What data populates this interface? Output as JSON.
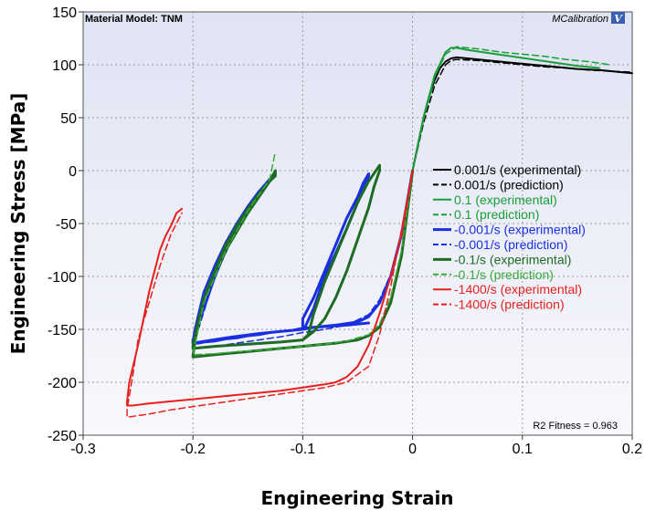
{
  "chart_data": {
    "type": "line",
    "header_left": "Material Model: TNM",
    "header_right": "MCalibration",
    "logo_glyph": "V",
    "fitness_label": "R2 Fitness = 0.963",
    "xlabel": "Engineering Strain",
    "ylabel": "Engineering Stress [MPa]",
    "xlim": [
      -0.3,
      0.2
    ],
    "ylim": [
      -250,
      150
    ],
    "xticks": [
      -0.3,
      -0.2,
      -0.1,
      0,
      0.1,
      0.2
    ],
    "xtick_labels": [
      "-0.3",
      "-0.2",
      "-0.1",
      "0",
      "0.1",
      "0.2"
    ],
    "yticks": [
      -250,
      -200,
      -150,
      -100,
      -50,
      0,
      50,
      100,
      150
    ],
    "ytick_labels": [
      "-250",
      "-200",
      "-150",
      "-100",
      "-50",
      "0",
      "50",
      "100",
      "150"
    ],
    "grid": true,
    "legend_position": "right",
    "series": [
      {
        "name": "0.001/s (experimental)",
        "color": "#000000",
        "style": "solid",
        "width": 2,
        "x": [
          0,
          0.005,
          0.01,
          0.015,
          0.02,
          0.025,
          0.03,
          0.035,
          0.04,
          0.05,
          0.07,
          0.09,
          0.11,
          0.13,
          0.15,
          0.17,
          0.19,
          0.2
        ],
        "y": [
          0,
          25,
          50,
          70,
          85,
          97,
          103,
          106,
          107,
          106,
          104,
          102,
          100,
          98,
          96,
          95,
          93,
          92
        ]
      },
      {
        "name": "0.001/s (prediction)",
        "color": "#000000",
        "style": "dashed",
        "width": 1.5,
        "x": [
          0,
          0.01,
          0.02,
          0.03,
          0.035,
          0.04,
          0.06,
          0.08,
          0.1,
          0.12,
          0.14,
          0.16,
          0.18,
          0.2
        ],
        "y": [
          0,
          45,
          80,
          100,
          104,
          105,
          104,
          102,
          100,
          98,
          97,
          95,
          94,
          93
        ]
      },
      {
        "name": "0.1 (experimental)",
        "color": "#1a9e3a",
        "style": "solid",
        "width": 2,
        "x": [
          0,
          0.01,
          0.02,
          0.03,
          0.035,
          0.04,
          0.05,
          0.07,
          0.09,
          0.11,
          0.13,
          0.15,
          0.17
        ],
        "y": [
          0,
          50,
          90,
          112,
          116,
          116,
          114,
          111,
          108,
          105,
          102,
          99,
          97
        ]
      },
      {
        "name": "0.1 (prediction)",
        "color": "#1a9e3a",
        "style": "dashed",
        "width": 1.5,
        "x": [
          0,
          0.01,
          0.02,
          0.03,
          0.04,
          0.06,
          0.08,
          0.1,
          0.12,
          0.14,
          0.16,
          0.18
        ],
        "y": [
          0,
          48,
          88,
          110,
          117,
          115,
          112,
          110,
          108,
          105,
          103,
          100
        ]
      },
      {
        "name": "-0.001/s (experimental)",
        "color": "#1a2fe0",
        "style": "solid",
        "width": 3,
        "x": [
          0,
          -0.005,
          -0.01,
          -0.02,
          -0.03,
          -0.04,
          -0.05,
          -0.07,
          -0.09,
          -0.1,
          -0.11,
          -0.12,
          -0.13,
          -0.14,
          -0.15,
          -0.16,
          -0.17,
          -0.18,
          -0.19,
          -0.195,
          -0.2,
          -0.2,
          -0.198,
          -0.19,
          -0.18,
          -0.17,
          -0.16,
          -0.15,
          -0.14,
          -0.13,
          -0.125,
          -0.13,
          -0.14,
          -0.15,
          -0.16,
          -0.17,
          -0.18,
          -0.19,
          -0.2,
          -0.2,
          -0.17,
          -0.14,
          -0.12,
          -0.1,
          -0.098,
          -0.09,
          -0.08,
          -0.07,
          -0.06,
          -0.05,
          -0.04,
          -0.04,
          -0.045,
          -0.05,
          -0.06,
          -0.07,
          -0.08,
          -0.09,
          -0.1,
          -0.1,
          -0.09,
          -0.06,
          -0.04
        ],
        "y": [
          0,
          -30,
          -60,
          -100,
          -125,
          -138,
          -143,
          -146,
          -148,
          -149,
          -151,
          -152,
          -153,
          -155,
          -156,
          -158,
          -159,
          -161,
          -162,
          -163,
          -163,
          -162,
          -150,
          -115,
          -90,
          -68,
          -50,
          -34,
          -20,
          -8,
          -3,
          -8,
          -22,
          -38,
          -55,
          -75,
          -100,
          -130,
          -160,
          -163,
          -158,
          -154,
          -152,
          -150,
          -148,
          -130,
          -100,
          -78,
          -55,
          -30,
          -5,
          -3,
          -12,
          -25,
          -45,
          -70,
          -95,
          -120,
          -140,
          -150,
          -148,
          -146,
          -144
        ]
      },
      {
        "name": "-0.001/s (prediction)",
        "color": "#1a2fe0",
        "style": "dashed",
        "width": 1.5,
        "x": [
          0,
          -0.01,
          -0.02,
          -0.03,
          -0.04,
          -0.06,
          -0.08,
          -0.1,
          -0.12,
          -0.14,
          -0.16,
          -0.18,
          -0.2,
          -0.195,
          -0.18,
          -0.16,
          -0.14,
          -0.13
        ],
        "y": [
          0,
          -58,
          -98,
          -122,
          -136,
          -146,
          -150,
          -153,
          -157,
          -160,
          -163,
          -166,
          -168,
          -150,
          -100,
          -55,
          -22,
          -8
        ]
      },
      {
        "name": "-0.1/s (experimental)",
        "color": "#1e6b24",
        "style": "solid",
        "width": 3,
        "x": [
          0,
          -0.005,
          -0.01,
          -0.02,
          -0.03,
          -0.04,
          -0.05,
          -0.07,
          -0.09,
          -0.1,
          -0.12,
          -0.14,
          -0.16,
          -0.18,
          -0.2,
          -0.2,
          -0.198,
          -0.19,
          -0.18,
          -0.17,
          -0.16,
          -0.15,
          -0.14,
          -0.13,
          -0.125,
          -0.125,
          -0.13,
          -0.15,
          -0.17,
          -0.19,
          -0.2,
          -0.2,
          -0.18,
          -0.15,
          -0.12,
          -0.1,
          -0.095,
          -0.09,
          -0.08,
          -0.07,
          -0.06,
          -0.05,
          -0.04,
          -0.03,
          -0.03,
          -0.035,
          -0.04,
          -0.05,
          -0.06,
          -0.07,
          -0.08,
          -0.09,
          -0.1
        ],
        "y": [
          0,
          -40,
          -80,
          -125,
          -148,
          -156,
          -160,
          -163,
          -165,
          -166,
          -168,
          -170,
          -172,
          -174,
          -176,
          -175,
          -160,
          -120,
          -95,
          -70,
          -52,
          -36,
          -22,
          -10,
          -5,
          0,
          -10,
          -40,
          -75,
          -120,
          -165,
          -168,
          -166,
          -164,
          -162,
          -160,
          -155,
          -135,
          -105,
          -80,
          -55,
          -30,
          -10,
          5,
          0,
          -15,
          -35,
          -65,
          -95,
          -120,
          -140,
          -152,
          -160
        ]
      },
      {
        "name": "-0.1/s (prediction)",
        "color": "#3aaa3a",
        "style": "dashed",
        "width": 1.5,
        "x": [
          0,
          -0.01,
          -0.02,
          -0.03,
          -0.04,
          -0.06,
          -0.08,
          -0.1,
          -0.12,
          -0.14,
          -0.16,
          -0.18,
          -0.2,
          -0.19,
          -0.17,
          -0.15,
          -0.13,
          -0.125
        ],
        "y": [
          0,
          -75,
          -120,
          -145,
          -155,
          -161,
          -164,
          -166,
          -168,
          -170,
          -171,
          -173,
          -174,
          -125,
          -75,
          -38,
          -8,
          18
        ]
      },
      {
        "name": "-1400/s (experimental)",
        "color": "#e8201c",
        "style": "solid",
        "width": 2,
        "x": [
          0,
          -0.005,
          -0.01,
          -0.02,
          -0.03,
          -0.04,
          -0.05,
          -0.06,
          -0.07,
          -0.08,
          -0.1,
          -0.12,
          -0.14,
          -0.16,
          -0.18,
          -0.2,
          -0.22,
          -0.24,
          -0.255,
          -0.26,
          -0.26,
          -0.258,
          -0.25,
          -0.245,
          -0.24,
          -0.235,
          -0.23,
          -0.225,
          -0.22,
          -0.215,
          -0.21
        ],
        "y": [
          0,
          -30,
          -60,
          -100,
          -135,
          -165,
          -185,
          -195,
          -200,
          -202,
          -205,
          -208,
          -210,
          -212,
          -214,
          -216,
          -218,
          -220,
          -222,
          -222,
          -218,
          -200,
          -165,
          -140,
          -115,
          -95,
          -75,
          -62,
          -52,
          -40,
          -36
        ]
      },
      {
        "name": "-1400/s (prediction)",
        "color": "#e8201c",
        "style": "dashed",
        "width": 1.5,
        "x": [
          0,
          -0.01,
          -0.02,
          -0.03,
          -0.04,
          -0.06,
          -0.08,
          -0.1,
          -0.12,
          -0.14,
          -0.16,
          -0.18,
          -0.2,
          -0.22,
          -0.24,
          -0.26,
          -0.26,
          -0.255,
          -0.25,
          -0.24,
          -0.23,
          -0.22,
          -0.21
        ],
        "y": [
          0,
          -55,
          -110,
          -155,
          -185,
          -200,
          -205,
          -208,
          -211,
          -214,
          -217,
          -220,
          -223,
          -226,
          -230,
          -233,
          -225,
          -195,
          -160,
          -125,
          -90,
          -60,
          -40
        ]
      }
    ]
  }
}
